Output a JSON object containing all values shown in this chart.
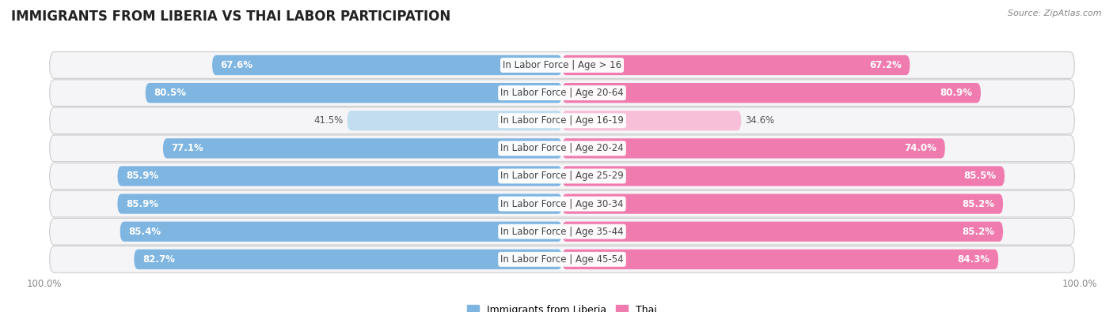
{
  "title": "IMMIGRANTS FROM LIBERIA VS THAI LABOR PARTICIPATION",
  "source": "Source: ZipAtlas.com",
  "categories": [
    "In Labor Force | Age > 16",
    "In Labor Force | Age 20-64",
    "In Labor Force | Age 16-19",
    "In Labor Force | Age 20-24",
    "In Labor Force | Age 25-29",
    "In Labor Force | Age 30-34",
    "In Labor Force | Age 35-44",
    "In Labor Force | Age 45-54"
  ],
  "liberia_values": [
    67.6,
    80.5,
    41.5,
    77.1,
    85.9,
    85.9,
    85.4,
    82.7
  ],
  "thai_values": [
    67.2,
    80.9,
    34.6,
    74.0,
    85.5,
    85.2,
    85.2,
    84.3
  ],
  "liberia_color": "#7EB5E1",
  "liberia_color_light": "#C2DCF0",
  "thai_color": "#F07BAE",
  "thai_color_light": "#F7C0D8",
  "row_bg_color": "#E8E8EC",
  "row_bg_inner": "#F5F5F8",
  "label_color_white": "#FFFFFF",
  "label_color_dark": "#555555",
  "center_label_color": "#444444",
  "axis_label_fontsize": 8.5,
  "bar_label_fontsize": 8.5,
  "category_label_fontsize": 8.5,
  "title_fontsize": 12,
  "legend_fontsize": 9,
  "small_threshold": 55
}
